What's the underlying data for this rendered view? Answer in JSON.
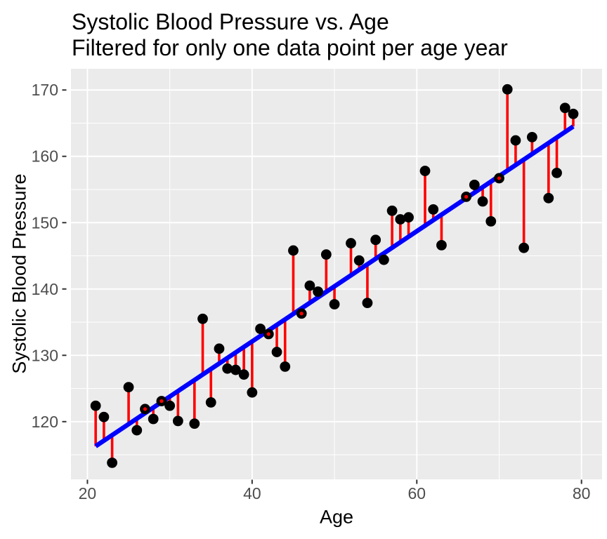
{
  "chart_data": {
    "type": "scatter",
    "title": "Systolic Blood Pressure vs. Age",
    "subtitle": "Filtered for only one data point per age year",
    "xlabel": "Age",
    "ylabel": "Systolic Blood Pressure",
    "x_ticks": [
      20,
      40,
      60,
      80
    ],
    "x_minor_ticks": [
      30,
      50,
      70
    ],
    "y_ticks": [
      120,
      130,
      140,
      150,
      160,
      170
    ],
    "y_minor_ticks": [
      115,
      125,
      135,
      145,
      155,
      165
    ],
    "xlim": [
      18.0,
      82.5
    ],
    "ylim": [
      111.3,
      173.2
    ],
    "grid": true,
    "legend": "none",
    "points": [
      [
        21,
        122.4
      ],
      [
        22,
        120.7
      ],
      [
        23,
        113.8
      ],
      [
        25,
        125.2
      ],
      [
        26,
        118.7
      ],
      [
        27,
        121.9
      ],
      [
        28,
        120.4
      ],
      [
        29,
        123.1
      ],
      [
        30,
        122.4
      ],
      [
        31,
        120.1
      ],
      [
        33,
        119.7
      ],
      [
        34,
        135.5
      ],
      [
        35,
        122.9
      ],
      [
        36,
        131.0
      ],
      [
        37,
        128.0
      ],
      [
        38,
        127.8
      ],
      [
        39,
        127.1
      ],
      [
        40,
        124.4
      ],
      [
        41,
        134.0
      ],
      [
        42,
        133.2
      ],
      [
        43,
        130.5
      ],
      [
        44,
        128.3
      ],
      [
        45,
        145.8
      ],
      [
        46,
        136.3
      ],
      [
        47,
        140.5
      ],
      [
        48,
        139.6
      ],
      [
        49,
        145.2
      ],
      [
        50,
        137.7
      ],
      [
        52,
        146.9
      ],
      [
        53,
        144.3
      ],
      [
        54,
        137.9
      ],
      [
        55,
        147.4
      ],
      [
        56,
        144.4
      ],
      [
        57,
        151.8
      ],
      [
        58,
        150.5
      ],
      [
        59,
        150.8
      ],
      [
        61,
        157.8
      ],
      [
        62,
        152.0
      ],
      [
        63,
        146.6
      ],
      [
        66,
        153.9
      ],
      [
        67,
        155.7
      ],
      [
        68,
        153.2
      ],
      [
        69,
        150.2
      ],
      [
        70,
        156.7
      ],
      [
        71,
        170.1
      ],
      [
        72,
        162.4
      ],
      [
        73,
        146.2
      ],
      [
        74,
        162.9
      ],
      [
        76,
        153.7
      ],
      [
        77,
        157.5
      ],
      [
        78,
        167.3
      ],
      [
        79,
        166.4
      ]
    ],
    "regression_line": {
      "x1": 21,
      "y1": 116.3,
      "x2": 79,
      "y2": 164.5
    },
    "colors": {
      "point": "#000000",
      "residual": "#FF0000",
      "line": "#0000FF",
      "panel": "#EBEBEB",
      "grid": "#FFFFFF",
      "tick_mark": "#333333",
      "tick_label": "#4D4D4D",
      "title": "#000000"
    }
  }
}
